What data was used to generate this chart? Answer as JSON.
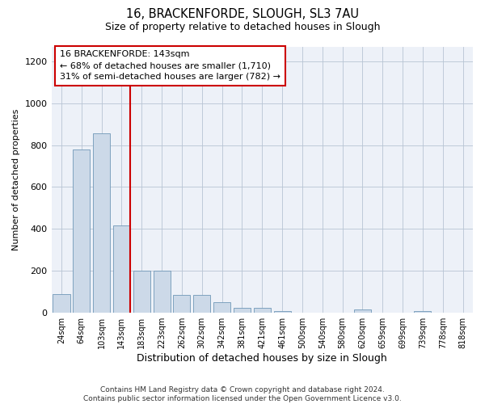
{
  "title_line1": "16, BRACKENFORDE, SLOUGH, SL3 7AU",
  "title_line2": "Size of property relative to detached houses in Slough",
  "xlabel": "Distribution of detached houses by size in Slough",
  "ylabel": "Number of detached properties",
  "categories": [
    "24sqm",
    "64sqm",
    "103sqm",
    "143sqm",
    "183sqm",
    "223sqm",
    "262sqm",
    "302sqm",
    "342sqm",
    "381sqm",
    "421sqm",
    "461sqm",
    "500sqm",
    "540sqm",
    "580sqm",
    "620sqm",
    "659sqm",
    "699sqm",
    "739sqm",
    "778sqm",
    "818sqm"
  ],
  "values": [
    90,
    780,
    855,
    415,
    200,
    200,
    85,
    85,
    50,
    25,
    25,
    10,
    0,
    0,
    0,
    15,
    0,
    0,
    10,
    0,
    0
  ],
  "bar_color": "#ccd9e8",
  "bar_edge_color": "#7098b8",
  "vline_x_index": 3,
  "vline_color": "#cc0000",
  "annotation_text": "16 BRACKENFORDE: 143sqm\n← 68% of detached houses are smaller (1,710)\n31% of semi-detached houses are larger (782) →",
  "annotation_box_color": "#ffffff",
  "annotation_box_edge": "#cc0000",
  "annotation_fontsize": 8,
  "ylim": [
    0,
    1270
  ],
  "yticks": [
    0,
    200,
    400,
    600,
    800,
    1000,
    1200
  ],
  "footer": "Contains HM Land Registry data © Crown copyright and database right 2024.\nContains public sector information licensed under the Open Government Licence v3.0.",
  "bg_color": "#ffffff",
  "plot_bg_color": "#edf1f8",
  "title1_fontsize": 10.5,
  "title2_fontsize": 9,
  "ylabel_fontsize": 8,
  "xlabel_fontsize": 9
}
